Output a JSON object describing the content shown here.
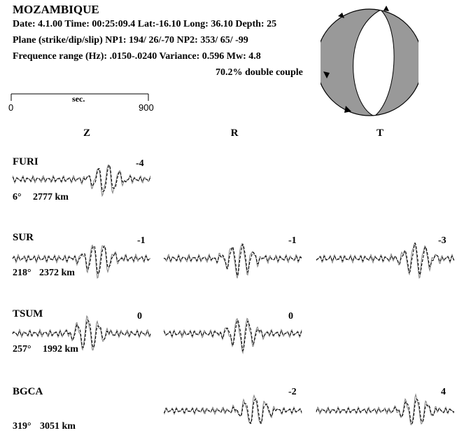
{
  "header": {
    "region": "MOZAMBIQUE",
    "line1": "Date: 4.1.00  Time: 00:25:09.4  Lat:-16.10  Long: 36.10  Depth: 25",
    "line2": "Plane (strike/dip/slip)  NP1: 194/ 26/-70  NP2: 353/ 65/ -99",
    "line3": "Frequence range (Hz):  .0150-.0240   Variance: 0.596  Mw: 4.8",
    "double_couple": "70.2% double couple"
  },
  "time_scale": {
    "unit": "sec.",
    "start": "0",
    "end": "900"
  },
  "components": [
    "Z",
    "R",
    "T"
  ],
  "colors": {
    "compressional": "#999999",
    "dilatational": "#ffffff",
    "observed": "#888888",
    "synthetic": "#000000"
  },
  "stations": [
    {
      "name": "FURI",
      "azimuth": "6°",
      "distance": "2777 km",
      "traces": [
        {
          "component": "Z",
          "shift": "-4"
        }
      ]
    },
    {
      "name": "SUR",
      "azimuth": "218°",
      "distance": "2372 km",
      "traces": [
        {
          "component": "Z",
          "shift": "-1"
        },
        {
          "component": "R",
          "shift": "-1"
        },
        {
          "component": "T",
          "shift": "-3"
        }
      ]
    },
    {
      "name": "TSUM",
      "azimuth": "257°",
      "distance": "1992 km",
      "traces": [
        {
          "component": "Z",
          "shift": "0"
        },
        {
          "component": "R",
          "shift": "0"
        }
      ]
    },
    {
      "name": "BGCA",
      "azimuth": "319°",
      "distance": "3051 km",
      "traces": [
        {
          "component": "R",
          "shift": "-2"
        },
        {
          "component": "T",
          "shift": "4"
        }
      ]
    }
  ]
}
